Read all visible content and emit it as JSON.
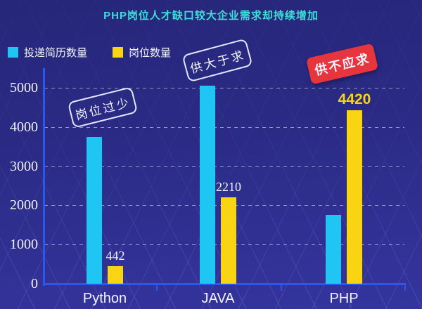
{
  "title": "PHP岗位人才缺口较大企业需求却持续增加",
  "legend": {
    "items": [
      {
        "label": "投递简历数量",
        "color": "#1fc6f3"
      },
      {
        "label": "岗位数量",
        "color": "#f8d412"
      }
    ]
  },
  "annotations": {
    "python_badge": "岗位过少",
    "java_badge": "供大于求",
    "php_badge": "供不应求"
  },
  "chart_data": {
    "type": "bar",
    "title": "PHP岗位人才缺口较大企业需求却持续增加",
    "categories": [
      "Python",
      "JAVA",
      "PHP"
    ],
    "series": [
      {
        "name": "投递简历数量",
        "color": "#1fc6f3",
        "values": [
          3750,
          5050,
          1750
        ]
      },
      {
        "name": "岗位数量",
        "color": "#f8d412",
        "values": [
          442,
          2210,
          4420
        ]
      }
    ],
    "bar_labels": [
      "442",
      "2210",
      "4420"
    ],
    "highlight_label_index": 2,
    "yticks": [
      0,
      1000,
      2000,
      3000,
      4000,
      5000
    ],
    "ylim": [
      0,
      5200
    ],
    "xlabel": "",
    "ylabel": "",
    "grid": "dashed-horizontal",
    "legend_position": "top-left",
    "annotations": [
      {
        "text": "岗位过少",
        "target": "Python",
        "style": "outlined-rotated"
      },
      {
        "text": "供大于求",
        "target": "JAVA",
        "style": "outlined-rotated"
      },
      {
        "text": "供不应求",
        "target": "PHP",
        "style": "red-badge-rotated"
      }
    ]
  },
  "colors": {
    "background_top": "#26267a",
    "background_bottom": "#34349e",
    "title_text": "#3ce0d6",
    "series_resumes": "#1fc6f3",
    "series_jobs": "#f8d412",
    "axis_line": "#2c58ea",
    "badge_red": "#e6353c",
    "tick_text": "#f2f2fa"
  }
}
